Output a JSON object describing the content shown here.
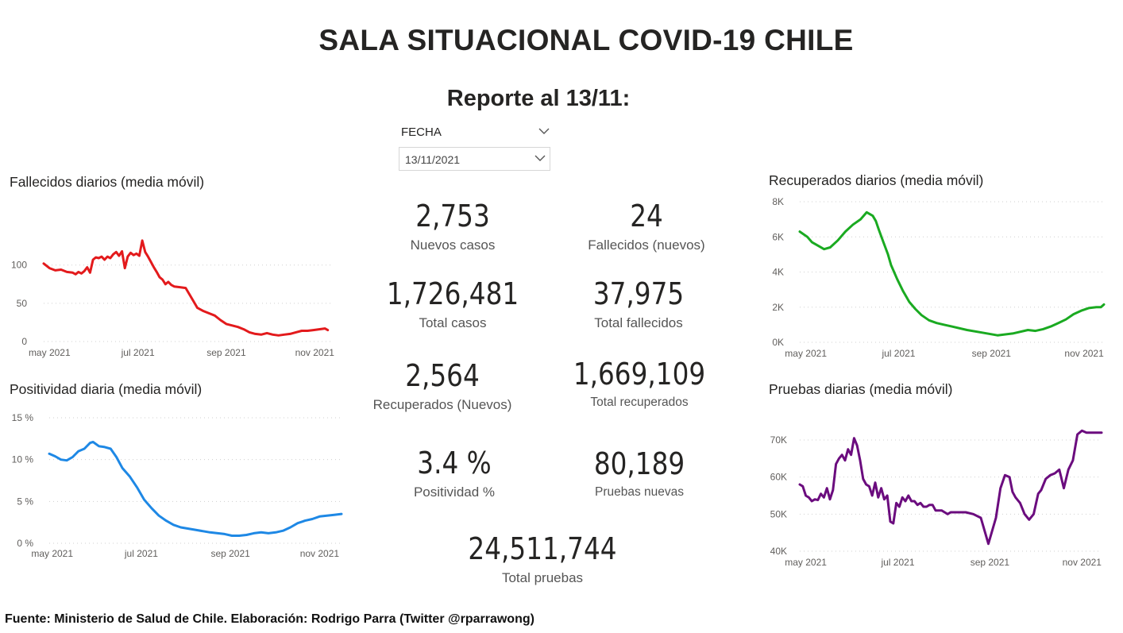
{
  "header": {
    "title": "SALA SITUACIONAL COVID-19 CHILE",
    "report_date": "Reporte al 13/11:"
  },
  "slicer": {
    "label": "FECHA",
    "value": "13/11/2021",
    "chevron_icon": "chevron-down-icon"
  },
  "kpis": {
    "nuevos_casos": {
      "value": "2,753",
      "label": "Nuevos casos"
    },
    "fallecidos_nuevos": {
      "value": "24",
      "label": "Fallecidos (nuevos)"
    },
    "total_casos": {
      "value": "1,726,481",
      "label": "Total casos"
    },
    "total_fallecidos": {
      "value": "37,975",
      "label": "Total fallecidos"
    },
    "recuperados_nuevos": {
      "value": "2,564",
      "label": "Recuperados (Nuevos)"
    },
    "total_recuperados": {
      "value": "1,669,109",
      "label": "Total recuperados"
    },
    "positividad": {
      "value": "3.4 %",
      "label": "Positividad %"
    },
    "pruebas_nuevas": {
      "value": "80,189",
      "label": "Pruebas nuevas"
    },
    "total_pruebas": {
      "value": "24,511,744",
      "label": "Total pruebas"
    }
  },
  "chart_data": [
    {
      "id": "fallecidos",
      "type": "line",
      "title": "Fallecidos diarios (media móvil)",
      "color": "#e31a1c",
      "x_range": [
        0,
        200
      ],
      "ylim": [
        0,
        135
      ],
      "y_ticks": [
        0,
        50,
        100
      ],
      "y_tick_labels": [
        "0",
        "50",
        "100"
      ],
      "x_ticks": [
        4,
        65,
        126,
        187
      ],
      "x_tick_labels": [
        "may 2021",
        "jul 2021",
        "sep 2021",
        "nov 2021"
      ],
      "x": [
        0,
        4,
        8,
        12,
        16,
        20,
        22,
        24,
        26,
        28,
        30,
        32,
        34,
        36,
        38,
        40,
        42,
        44,
        46,
        48,
        50,
        52,
        54,
        56,
        58,
        60,
        62,
        64,
        66,
        68,
        70,
        72,
        74,
        76,
        78,
        80,
        82,
        84,
        86,
        88,
        90,
        94,
        98,
        102,
        106,
        110,
        114,
        118,
        122,
        126,
        130,
        134,
        138,
        142,
        146,
        150,
        154,
        158,
        162,
        166,
        170,
        174,
        178,
        182,
        186,
        190,
        194,
        196
      ],
      "y": [
        102,
        96,
        93,
        94,
        91,
        90,
        88,
        91,
        89,
        92,
        97,
        90,
        107,
        110,
        109,
        111,
        107,
        111,
        109,
        114,
        117,
        112,
        118,
        96,
        111,
        116,
        113,
        115,
        112,
        132,
        117,
        111,
        104,
        97,
        91,
        84,
        81,
        75,
        78,
        74,
        72,
        71,
        70,
        57,
        44,
        40,
        37,
        34,
        28,
        23,
        21,
        19,
        16,
        12,
        10,
        9,
        11,
        9,
        8,
        9,
        10,
        12,
        14,
        14,
        15,
        16,
        17,
        15
      ]
    },
    {
      "id": "recuperados",
      "type": "line",
      "title": "Recuperados diarios (media móvil)",
      "color": "#1aaa21",
      "x_range": [
        0,
        200
      ],
      "ylim": [
        0,
        8000
      ],
      "y_ticks": [
        0,
        2000,
        4000,
        6000,
        8000
      ],
      "y_tick_labels": [
        "0K",
        "2K",
        "4K",
        "6K",
        "8K"
      ],
      "x_ticks": [
        4,
        65,
        126,
        187
      ],
      "x_tick_labels": [
        "may 2021",
        "jul 2021",
        "sep 2021",
        "nov 2021"
      ],
      "x": [
        0,
        5,
        8,
        12,
        16,
        20,
        25,
        30,
        35,
        40,
        44,
        48,
        50,
        52,
        55,
        58,
        60,
        64,
        68,
        72,
        76,
        80,
        85,
        90,
        95,
        100,
        110,
        120,
        130,
        140,
        150,
        155,
        160,
        165,
        170,
        175,
        180,
        185,
        190,
        195,
        198,
        200
      ],
      "y": [
        6300,
        6000,
        5700,
        5500,
        5300,
        5400,
        5800,
        6300,
        6700,
        7000,
        7400,
        7200,
        6900,
        6400,
        5700,
        5000,
        4400,
        3600,
        2900,
        2300,
        1900,
        1550,
        1250,
        1100,
        1000,
        900,
        700,
        550,
        400,
        500,
        700,
        650,
        750,
        900,
        1100,
        1300,
        1600,
        1800,
        1950,
        2000,
        2000,
        2150
      ]
    },
    {
      "id": "positividad",
      "type": "line",
      "title": "Positividad diaria (media móvil)",
      "color": "#1e88e5",
      "x_range": [
        0,
        200
      ],
      "ylim": [
        0,
        15
      ],
      "y_ticks": [
        0,
        5,
        10,
        15
      ],
      "y_tick_labels": [
        "0 %",
        "5 %",
        "10 %",
        "15 %"
      ],
      "x_ticks": [
        2,
        63,
        124,
        185
      ],
      "x_tick_labels": [
        "may 2021",
        "jul 2021",
        "sep 2021",
        "nov 2021"
      ],
      "x": [
        0,
        4,
        8,
        12,
        16,
        20,
        24,
        28,
        30,
        34,
        38,
        42,
        46,
        50,
        55,
        60,
        65,
        70,
        75,
        80,
        85,
        90,
        100,
        110,
        120,
        125,
        130,
        135,
        140,
        145,
        150,
        155,
        160,
        165,
        170,
        175,
        180,
        185,
        190,
        195,
        200
      ],
      "y": [
        10.7,
        10.4,
        10,
        9.9,
        10.3,
        11,
        11.3,
        12,
        12.1,
        11.6,
        11.5,
        11.3,
        10.3,
        9,
        8,
        6.7,
        5.2,
        4.2,
        3.3,
        2.7,
        2.2,
        1.9,
        1.6,
        1.3,
        1.1,
        0.9,
        0.9,
        1,
        1.2,
        1.3,
        1.2,
        1.3,
        1.5,
        1.9,
        2.4,
        2.7,
        2.9,
        3.2,
        3.3,
        3.4,
        3.5
      ]
    },
    {
      "id": "pruebas",
      "type": "line",
      "title": "Pruebas diarias (media móvil)",
      "color": "#6b0c7e",
      "x_range": [
        0,
        200
      ],
      "ylim": [
        40000,
        73000
      ],
      "y_ticks": [
        40000,
        50000,
        60000,
        70000
      ],
      "y_tick_labels": [
        "40K",
        "50K",
        "60K",
        "70K"
      ],
      "x_ticks": [
        4,
        65,
        126,
        187
      ],
      "x_tick_labels": [
        "may 2021",
        "jul 2021",
        "sep 2021",
        "nov 2021"
      ],
      "x": [
        0,
        2,
        4,
        6,
        8,
        10,
        12,
        14,
        16,
        18,
        20,
        22,
        24,
        26,
        28,
        30,
        32,
        34,
        36,
        38,
        40,
        42,
        44,
        46,
        48,
        50,
        52,
        54,
        56,
        58,
        60,
        62,
        64,
        66,
        68,
        70,
        72,
        74,
        76,
        78,
        80,
        82,
        84,
        86,
        88,
        90,
        92,
        94,
        96,
        98,
        100,
        105,
        110,
        115,
        120,
        125,
        130,
        133,
        136,
        139,
        141,
        143,
        146,
        149,
        152,
        155,
        158,
        160,
        163,
        166,
        169,
        172,
        175,
        178,
        181,
        184,
        187,
        190,
        193,
        196,
        198,
        200
      ],
      "y": [
        58000,
        57500,
        55000,
        54500,
        53500,
        54000,
        53800,
        55500,
        54500,
        57000,
        54000,
        56500,
        63500,
        65000,
        66000,
        64500,
        67500,
        66000,
        70500,
        68500,
        64500,
        59500,
        58000,
        57500,
        55000,
        58500,
        54500,
        57000,
        54000,
        55000,
        48000,
        47500,
        53000,
        52000,
        54500,
        53500,
        55000,
        53500,
        53500,
        52500,
        53000,
        52000,
        52000,
        52500,
        52500,
        51000,
        51000,
        51000,
        50500,
        50000,
        50500,
        50500,
        50500,
        50000,
        49000,
        42000,
        49000,
        57000,
        60500,
        60000,
        56000,
        54500,
        53000,
        50000,
        48500,
        50000,
        55500,
        56500,
        59500,
        60500,
        61000,
        62000,
        57000,
        62000,
        64500,
        71500,
        72500,
        72000,
        72000,
        72000,
        72000,
        72000
      ]
    }
  ],
  "footer": {
    "source": "Fuente: Ministerio de Salud de Chile. Elaboración: Rodrigo Parra (Twitter @rparrawong)"
  }
}
